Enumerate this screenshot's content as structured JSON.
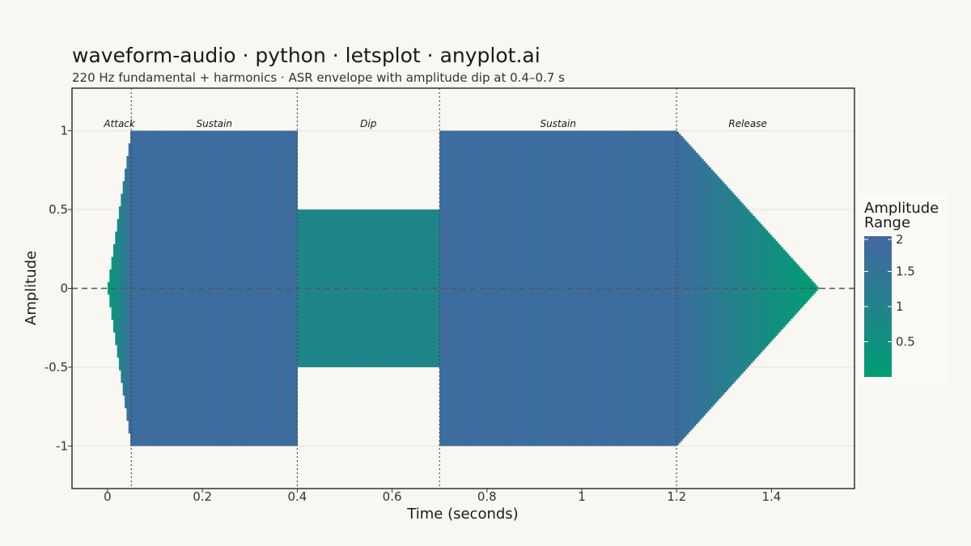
{
  "title": "waveform-audio · python · letsplot · anyplot.ai",
  "subtitle": "220 Hz fundamental + harmonics · ASR envelope with amplitude dip at 0.4–0.7 s",
  "chart_data": {
    "type": "area",
    "description_series": "waveform bars colored by amplitude range",
    "xlabel": "Time (seconds)",
    "ylabel": "Amplitude",
    "xlim": [
      -0.075,
      1.575
    ],
    "ylim": [
      -1.27,
      1.27
    ],
    "x_ticks": [
      {
        "value": 0,
        "label": "0"
      },
      {
        "value": 0.2,
        "label": "0.2"
      },
      {
        "value": 0.4,
        "label": "0.4"
      },
      {
        "value": 0.6,
        "label": "0.6"
      },
      {
        "value": 0.8,
        "label": "0.8"
      },
      {
        "value": 1.0,
        "label": "1"
      },
      {
        "value": 1.2,
        "label": "1.2"
      },
      {
        "value": 1.4,
        "label": "1.4"
      }
    ],
    "y_ticks": [
      {
        "value": 1,
        "label": "1"
      },
      {
        "value": 0.5,
        "label": "0.5"
      },
      {
        "value": 0,
        "label": "0"
      },
      {
        "value": -0.5,
        "label": "-0.5"
      },
      {
        "value": -1,
        "label": "-1"
      }
    ],
    "grid": true,
    "zero_line": "dashed",
    "envelope": [
      {
        "t": 0.0,
        "amp": 0.0
      },
      {
        "t": 0.05,
        "amp": 1.0
      },
      {
        "t": 0.4,
        "amp": 1.0
      },
      {
        "t": 0.4,
        "amp": 0.5
      },
      {
        "t": 0.7,
        "amp": 0.5
      },
      {
        "t": 0.7,
        "amp": 1.0
      },
      {
        "t": 1.2,
        "amp": 1.0
      },
      {
        "t": 1.5,
        "amp": 0.0
      }
    ],
    "frequency_hz": 220,
    "region_boundaries": [
      0.05,
      0.4,
      0.7,
      1.2
    ],
    "regions": [
      {
        "label": "Attack",
        "x": 0.025
      },
      {
        "label": "Sustain",
        "x": 0.225
      },
      {
        "label": "Dip",
        "x": 0.55
      },
      {
        "label": "Sustain",
        "x": 0.95
      },
      {
        "label": "Release",
        "x": 1.35
      }
    ],
    "legend": {
      "title_line1": "Amplitude",
      "title_line2": "Range",
      "range": [
        0,
        2
      ],
      "ticks": [
        {
          "value": 2,
          "label": "2"
        },
        {
          "value": 1.5,
          "label": "1.5"
        },
        {
          "value": 1,
          "label": "1"
        },
        {
          "value": 0.5,
          "label": "0.5"
        }
      ],
      "color_low": "#009e73",
      "color_high": "#4467a3",
      "placement": "right"
    }
  }
}
